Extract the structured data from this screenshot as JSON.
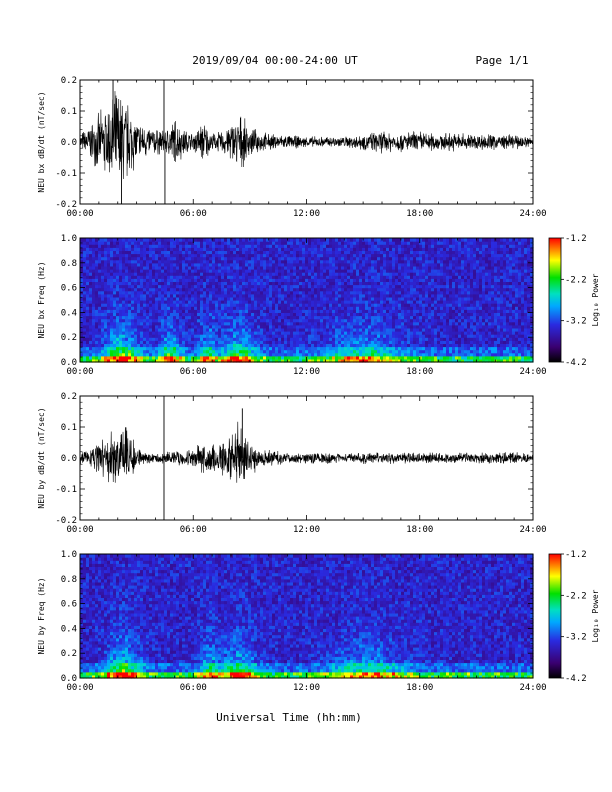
{
  "header": {
    "date_range": "2019/09/04  00:00-24:00 UT",
    "page": "Page 1/1"
  },
  "xaxis": {
    "label": "Universal Time (hh:mm)",
    "ticks": [
      "00:00",
      "06:00",
      "12:00",
      "18:00",
      "24:00"
    ]
  },
  "colorbar": {
    "label": "Log₁₀ Power",
    "ticks": [
      "-1.2",
      "-2.2",
      "-3.2",
      "-4.2"
    ],
    "range": [
      -4.2,
      -1.2
    ]
  },
  "chart_data": [
    {
      "type": "line",
      "ylabel": "NEU bx dB/dt (nT/sec)",
      "xlim": [
        0,
        24
      ],
      "ylim": [
        -0.2,
        0.2
      ],
      "yticks": [
        "0.2",
        "0.1",
        "0.0",
        "-0.1",
        "-0.2"
      ],
      "envelope": {
        "t": [
          0,
          0.5,
          1,
          1.5,
          2,
          2.5,
          3,
          3.5,
          4,
          4.5,
          5,
          5.5,
          6,
          6.5,
          7,
          7.5,
          8,
          8.5,
          9,
          9.5,
          10,
          11,
          12,
          13,
          14,
          15,
          16,
          17,
          18,
          19,
          20,
          21,
          22,
          23,
          24
        ],
        "amp": [
          0.03,
          0.06,
          0.1,
          0.14,
          0.2,
          0.15,
          0.08,
          0.06,
          0.05,
          0.04,
          0.09,
          0.05,
          0.03,
          0.08,
          0.03,
          0.04,
          0.07,
          0.1,
          0.05,
          0.04,
          0.03,
          0.025,
          0.02,
          0.02,
          0.02,
          0.03,
          0.04,
          0.035,
          0.04,
          0.03,
          0.035,
          0.03,
          0.03,
          0.025,
          0.02
        ]
      },
      "spikes": [
        {
          "t": 1.75,
          "value": 0.2
        },
        {
          "t": 2.2,
          "value": -0.2
        },
        {
          "t": 4.45,
          "value": 0.2
        },
        {
          "t": 4.5,
          "value": -0.2
        }
      ]
    },
    {
      "type": "heatmap",
      "ylabel": "NEU bx Freq (Hz)",
      "xlim": [
        0,
        24
      ],
      "ylim": [
        0.0,
        1.0
      ],
      "yticks": [
        "1.0",
        "0.8",
        "0.6",
        "0.4",
        "0.2",
        "0.0"
      ],
      "zlim": [
        -4.2,
        -1.2
      ],
      "activity": [
        {
          "t": 2.2,
          "width_h": 0.9,
          "peak_log_power": -2.2
        },
        {
          "t": 4.8,
          "width_h": 0.6,
          "peak_log_power": -2.6
        },
        {
          "t": 6.8,
          "width_h": 0.6,
          "peak_log_power": -2.8
        },
        {
          "t": 8.4,
          "width_h": 0.9,
          "peak_log_power": -2.5
        },
        {
          "t": 15.0,
          "width_h": 2.0,
          "peak_log_power": -3.0
        }
      ]
    },
    {
      "type": "line",
      "ylabel": "NEU by dB/dt (nT/sec)",
      "xlim": [
        0,
        24
      ],
      "ylim": [
        -0.2,
        0.2
      ],
      "yticks": [
        "0.2",
        "0.1",
        "0.0",
        "-0.1",
        "-0.2"
      ],
      "envelope": {
        "t": [
          0,
          0.5,
          1,
          1.5,
          2,
          2.5,
          3,
          3.5,
          4,
          4.5,
          5,
          5.5,
          6,
          6.5,
          7,
          7.5,
          8,
          8.5,
          9,
          9.5,
          10,
          11,
          12,
          13,
          14,
          15,
          16,
          17,
          18,
          19,
          20,
          21,
          22,
          23,
          24
        ],
        "amp": [
          0.02,
          0.03,
          0.06,
          0.09,
          0.12,
          0.11,
          0.04,
          0.02,
          0.02,
          0.02,
          0.03,
          0.03,
          0.03,
          0.06,
          0.06,
          0.06,
          0.08,
          0.14,
          0.07,
          0.04,
          0.03,
          0.02,
          0.02,
          0.02,
          0.015,
          0.02,
          0.02,
          0.02,
          0.02,
          0.02,
          0.02,
          0.02,
          0.02,
          0.02,
          0.015
        ]
      },
      "spikes": [
        {
          "t": 4.45,
          "value": 0.2
        },
        {
          "t": 4.45,
          "value": -0.2
        },
        {
          "t": 8.6,
          "value": 0.16
        }
      ]
    },
    {
      "type": "heatmap",
      "ylabel": "NEU by Freq (Hz)",
      "xlim": [
        0,
        24
      ],
      "ylim": [
        0.0,
        1.0
      ],
      "yticks": [
        "1.0",
        "0.8",
        "0.6",
        "0.4",
        "0.2",
        "0.0"
      ],
      "zlim": [
        -4.2,
        -1.2
      ],
      "activity": [
        {
          "t": 2.3,
          "width_h": 0.9,
          "peak_log_power": -2.2
        },
        {
          "t": 6.9,
          "width_h": 0.6,
          "peak_log_power": -2.8
        },
        {
          "t": 8.4,
          "width_h": 0.9,
          "peak_log_power": -2.4
        },
        {
          "t": 15.2,
          "width_h": 2.0,
          "peak_log_power": -3.0
        }
      ]
    }
  ]
}
